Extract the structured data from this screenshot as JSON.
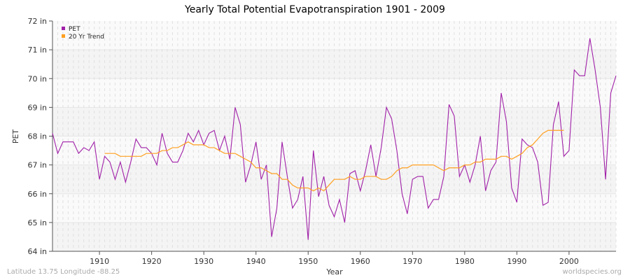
{
  "chart_data": {
    "type": "line",
    "title": "Yearly Total Potential Evapotranspiration 1901 - 2009",
    "xlabel": "Year",
    "ylabel": "PET",
    "xlim": [
      1901,
      2009
    ],
    "ylim": [
      64,
      72
    ],
    "x_ticks": [
      1910,
      1920,
      1930,
      1940,
      1950,
      1960,
      1970,
      1980,
      1990,
      2000
    ],
    "y_ticks": [
      "64 in",
      "65 in",
      "66 in",
      "67 in",
      "68 in",
      "69 in",
      "70 in",
      "71 in",
      "72 in"
    ],
    "grid": true,
    "legend_placement": "top-left",
    "series": [
      {
        "name": "PET",
        "color": "#a020a8",
        "x_start": 1901,
        "values": [
          68.1,
          67.4,
          67.8,
          67.8,
          67.8,
          67.4,
          67.6,
          67.5,
          67.8,
          66.5,
          67.3,
          67.1,
          66.5,
          67.1,
          66.4,
          67.1,
          67.9,
          67.6,
          67.6,
          67.4,
          67.0,
          68.1,
          67.4,
          67.1,
          67.1,
          67.5,
          68.1,
          67.8,
          68.2,
          67.7,
          68.1,
          68.2,
          67.5,
          68.0,
          67.2,
          69.0,
          68.4,
          66.4,
          67.0,
          67.8,
          66.5,
          67.0,
          64.5,
          65.5,
          67.8,
          66.6,
          65.5,
          65.8,
          66.6,
          64.4,
          67.5,
          65.9,
          66.6,
          65.6,
          65.2,
          65.8,
          65.0,
          66.7,
          66.8,
          66.1,
          66.8,
          67.7,
          66.6,
          67.6,
          69.0,
          68.6,
          67.5,
          66.0,
          65.3,
          66.5,
          66.6,
          66.6,
          65.5,
          65.8,
          65.8,
          66.6,
          69.1,
          68.7,
          66.6,
          67.0,
          66.4,
          67.0,
          68.0,
          66.1,
          66.8,
          67.1,
          69.5,
          68.5,
          66.2,
          65.7,
          67.9,
          67.7,
          67.6,
          67.1,
          65.6,
          65.7,
          68.4,
          69.2,
          67.3,
          67.5,
          70.3,
          70.1,
          70.1,
          71.4,
          70.3,
          69.0,
          66.5,
          69.5,
          70.1
        ]
      },
      {
        "name": "20 Yr Trend",
        "color": "#ffa020",
        "x_start": 1911,
        "values": [
          67.4,
          67.4,
          67.4,
          67.3,
          67.3,
          67.3,
          67.3,
          67.3,
          67.4,
          67.4,
          67.4,
          67.5,
          67.5,
          67.6,
          67.6,
          67.7,
          67.8,
          67.7,
          67.7,
          67.7,
          67.6,
          67.6,
          67.5,
          67.4,
          67.4,
          67.4,
          67.3,
          67.2,
          67.1,
          66.9,
          66.9,
          66.8,
          66.7,
          66.7,
          66.5,
          66.5,
          66.3,
          66.2,
          66.2,
          66.2,
          66.1,
          66.2,
          66.1,
          66.3,
          66.5,
          66.5,
          66.5,
          66.6,
          66.5,
          66.5,
          66.6,
          66.6,
          66.6,
          66.5,
          66.5,
          66.6,
          66.8,
          66.9,
          66.9,
          67.0,
          67.0,
          67.0,
          67.0,
          67.0,
          66.9,
          66.8,
          66.9,
          66.9,
          66.9,
          67.0,
          67.0,
          67.1,
          67.1,
          67.2,
          67.2,
          67.2,
          67.3,
          67.3,
          67.2,
          67.3,
          67.4,
          67.6,
          67.7,
          67.9,
          68.1,
          68.2,
          68.2,
          68.2,
          68.2
        ]
      }
    ]
  },
  "footer": {
    "location": "Latitude 13.75 Longitude -88.25",
    "source": "worldspecies.org"
  }
}
